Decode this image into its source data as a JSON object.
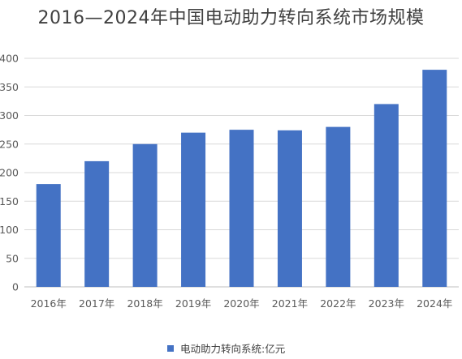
{
  "chart_data": {
    "type": "bar",
    "title": "2016—2024年中国电动助力转向系统市场规模",
    "xlabel": "",
    "ylabel": "",
    "categories": [
      "2016年",
      "2017年",
      "2018年",
      "2019年",
      "2020年",
      "2021年",
      "2022年",
      "2023年",
      "2024年"
    ],
    "series": [
      {
        "name": "电动助力转向系统:亿元",
        "values": [
          180,
          220,
          250,
          270,
          275,
          274,
          280,
          320,
          380
        ],
        "color": "#4472C4"
      }
    ],
    "ylim": [
      0,
      400
    ],
    "yticks": [
      0,
      50,
      100,
      150,
      200,
      250,
      300,
      350,
      400
    ],
    "grid": true,
    "legend_position": "bottom"
  }
}
